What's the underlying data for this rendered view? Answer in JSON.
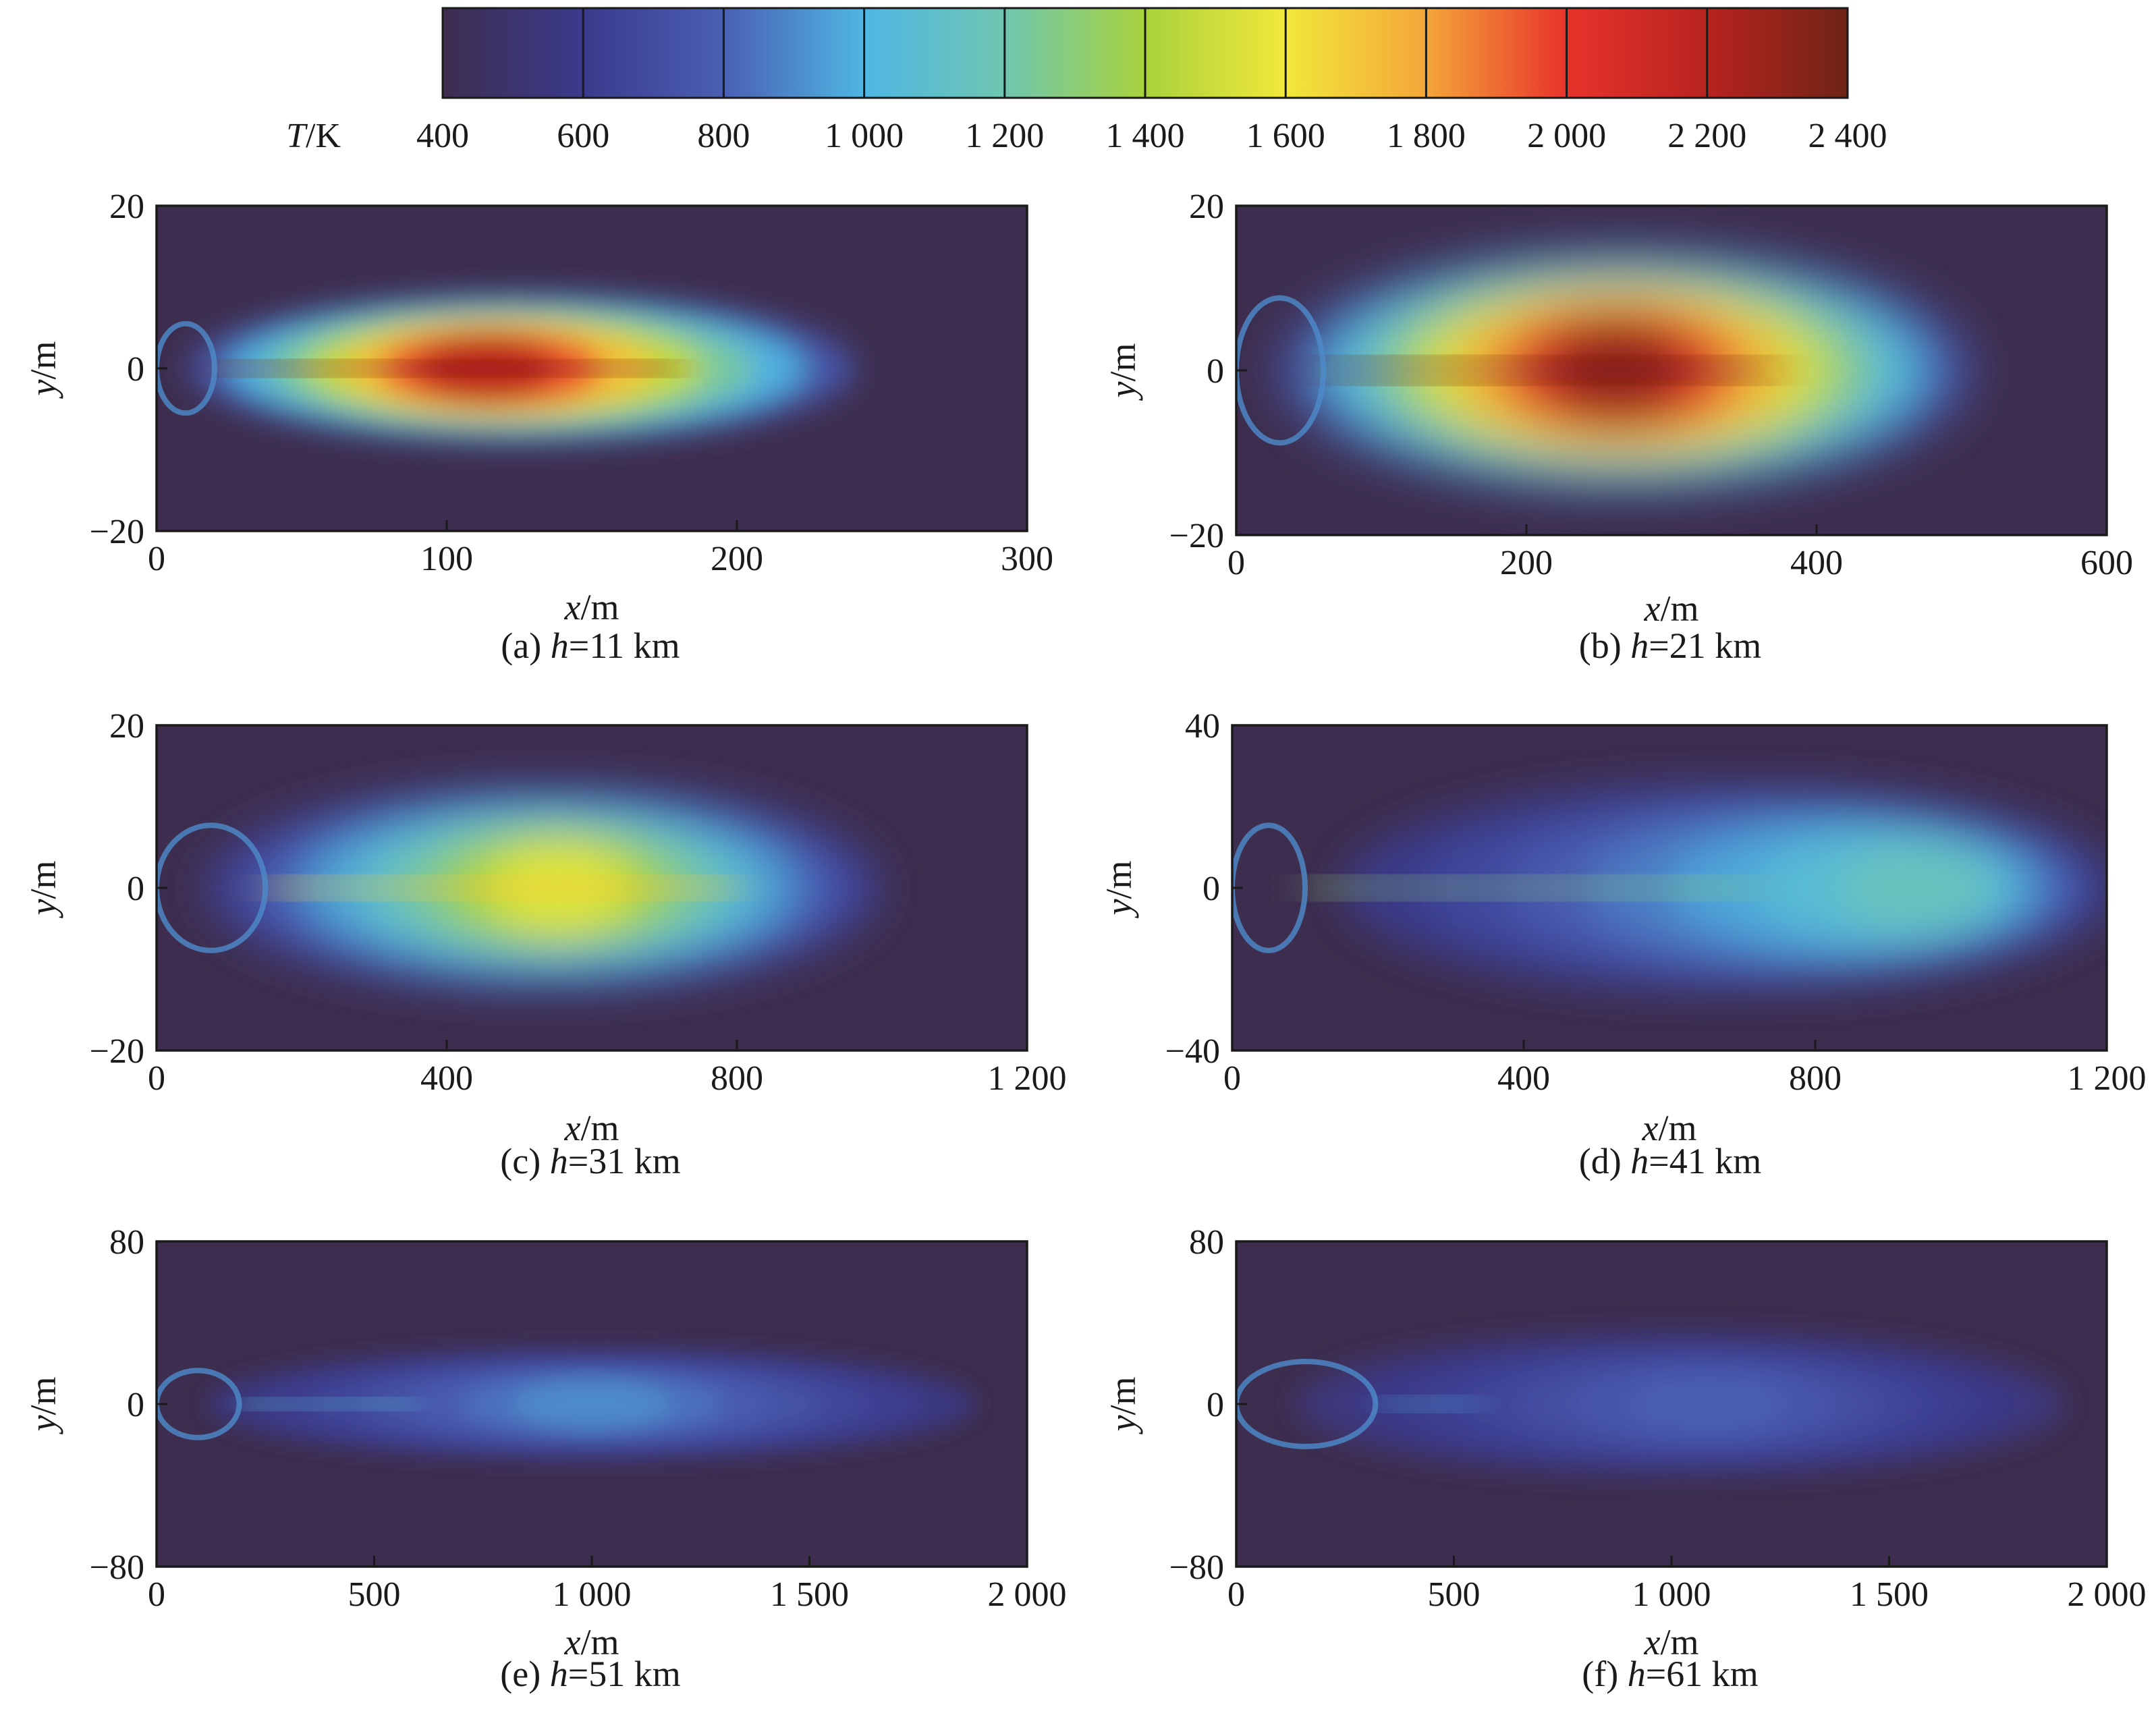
{
  "colorbar": {
    "label_var": "T",
    "label_unit": "/K",
    "ticks": [
      "400",
      "600",
      "800",
      "1 000",
      "1 200",
      "1 400",
      "1 600",
      "1 800",
      "2 000",
      "2 200",
      "2 400"
    ],
    "tick_values": [
      400,
      600,
      800,
      1000,
      1200,
      1400,
      1600,
      1800,
      2000,
      2200,
      2400
    ],
    "colors": [
      "#3d2e4f",
      "#3b3a8c",
      "#4a5fb3",
      "#4fb6e3",
      "#6fc6b0",
      "#a8d23c",
      "#f2e83a",
      "#f4a63a",
      "#e8332c",
      "#b8231f",
      "#6e2416"
    ]
  },
  "chart_data": [
    {
      "type": "heatmap",
      "caption_prefix": "(a) ",
      "caption_var": "h",
      "caption_value": "=11 km",
      "xlabel_var": "x",
      "xlabel_unit": "/m",
      "ylabel_var": "y",
      "ylabel_unit": "/m",
      "xlim": [
        0,
        300
      ],
      "ylim": [
        -20,
        20
      ],
      "xticks": [
        0,
        100,
        200,
        300
      ],
      "xtick_labels": [
        "0",
        "100",
        "200",
        "300"
      ],
      "yticks": [
        -20,
        0,
        20
      ],
      "ytick_labels": [
        "−20",
        "0",
        "20"
      ],
      "plume": {
        "length": 260,
        "halfwidth": 10,
        "peak_temperature": 2200,
        "peak_x": 110,
        "core_x_range": [
          20,
          180
        ]
      }
    },
    {
      "type": "heatmap",
      "caption_prefix": "(b) ",
      "caption_var": "h",
      "caption_value": "=21 km",
      "xlabel_var": "x",
      "xlabel_unit": "/m",
      "ylabel_var": "y",
      "ylabel_unit": "/m",
      "xlim": [
        0,
        600
      ],
      "ylim": [
        -20,
        20
      ],
      "xticks": [
        0,
        200,
        400,
        600
      ],
      "xtick_labels": [
        "0",
        "200",
        "400",
        "600"
      ],
      "yticks": [
        -20,
        0,
        20
      ],
      "ytick_labels": [
        "−20",
        "0",
        "20"
      ],
      "plume": {
        "length": 540,
        "halfwidth": 16,
        "peak_temperature": 2300,
        "peak_x": 260,
        "core_x_range": [
          60,
          370
        ]
      }
    },
    {
      "type": "heatmap",
      "caption_prefix": "(c) ",
      "caption_var": "h",
      "caption_value": "=31 km",
      "xlabel_var": "x",
      "xlabel_unit": "/m",
      "ylabel_var": "y",
      "ylabel_unit": "/m",
      "xlim": [
        0,
        1200
      ],
      "ylim": [
        -20,
        20
      ],
      "xticks": [
        0,
        400,
        800,
        1200
      ],
      "xtick_labels": [
        "0",
        "400",
        "800",
        "1 200"
      ],
      "yticks": [
        -20,
        0,
        20
      ],
      "ytick_labels": [
        "−20",
        "0",
        "20"
      ],
      "plume": {
        "length": 1050,
        "halfwidth": 14,
        "peak_temperature": 1550,
        "peak_x": 560,
        "core_x_range": [
          150,
          800
        ]
      }
    },
    {
      "type": "heatmap",
      "caption_prefix": "(d) ",
      "caption_var": "h",
      "caption_value": "=41 km",
      "xlabel_var": "x",
      "xlabel_unit": "/m",
      "ylabel_var": "y",
      "ylabel_unit": "/m",
      "xlim": [
        0,
        1200
      ],
      "ylim": [
        -40,
        40
      ],
      "xticks": [
        0,
        400,
        800,
        1200
      ],
      "xtick_labels": [
        "0",
        "400",
        "800",
        "1 200"
      ],
      "yticks": [
        -40,
        0,
        40
      ],
      "ytick_labels": [
        "−40",
        "0",
        "40"
      ],
      "plume": {
        "length": 1200,
        "halfwidth": 28,
        "peak_temperature": 1150,
        "peak_x": 1000,
        "core_x_range": [
          100,
          720
        ]
      }
    },
    {
      "type": "heatmap",
      "caption_prefix": "(e) ",
      "caption_var": "h",
      "caption_value": "=51 km",
      "xlabel_var": "x",
      "xlabel_unit": "/m",
      "ylabel_var": "y",
      "ylabel_unit": "/m",
      "xlim": [
        0,
        2000
      ],
      "ylim": [
        -80,
        80
      ],
      "xticks": [
        0,
        500,
        1000,
        1500,
        2000
      ],
      "xtick_labels": [
        "0",
        "500",
        "1 000",
        "1 500",
        "2 000"
      ],
      "yticks": [
        -80,
        0,
        80
      ],
      "ytick_labels": [
        "−80",
        "0",
        "80"
      ],
      "plume": {
        "length": 2000,
        "halfwidth": 30,
        "peak_temperature": 900,
        "peak_x": 1000,
        "core_x_range": [
          190,
          600
        ]
      }
    },
    {
      "type": "heatmap",
      "caption_prefix": "(f) ",
      "caption_var": "h",
      "caption_value": "=61 km",
      "xlabel_var": "x",
      "xlabel_unit": "/m",
      "ylabel_var": "y",
      "ylabel_unit": "/m",
      "xlim": [
        0,
        2000
      ],
      "ylim": [
        -80,
        80
      ],
      "xticks": [
        0,
        500,
        1000,
        1500,
        2000
      ],
      "xtick_labels": [
        "0",
        "500",
        "1 000",
        "1 500",
        "2 000"
      ],
      "yticks": [
        -80,
        0,
        80
      ],
      "ytick_labels": [
        "−80",
        "0",
        "80"
      ],
      "plume": {
        "length": 2000,
        "halfwidth": 38,
        "peak_temperature": 800,
        "peak_x": 1100,
        "core_x_range": [
          320,
          560
        ]
      }
    }
  ]
}
